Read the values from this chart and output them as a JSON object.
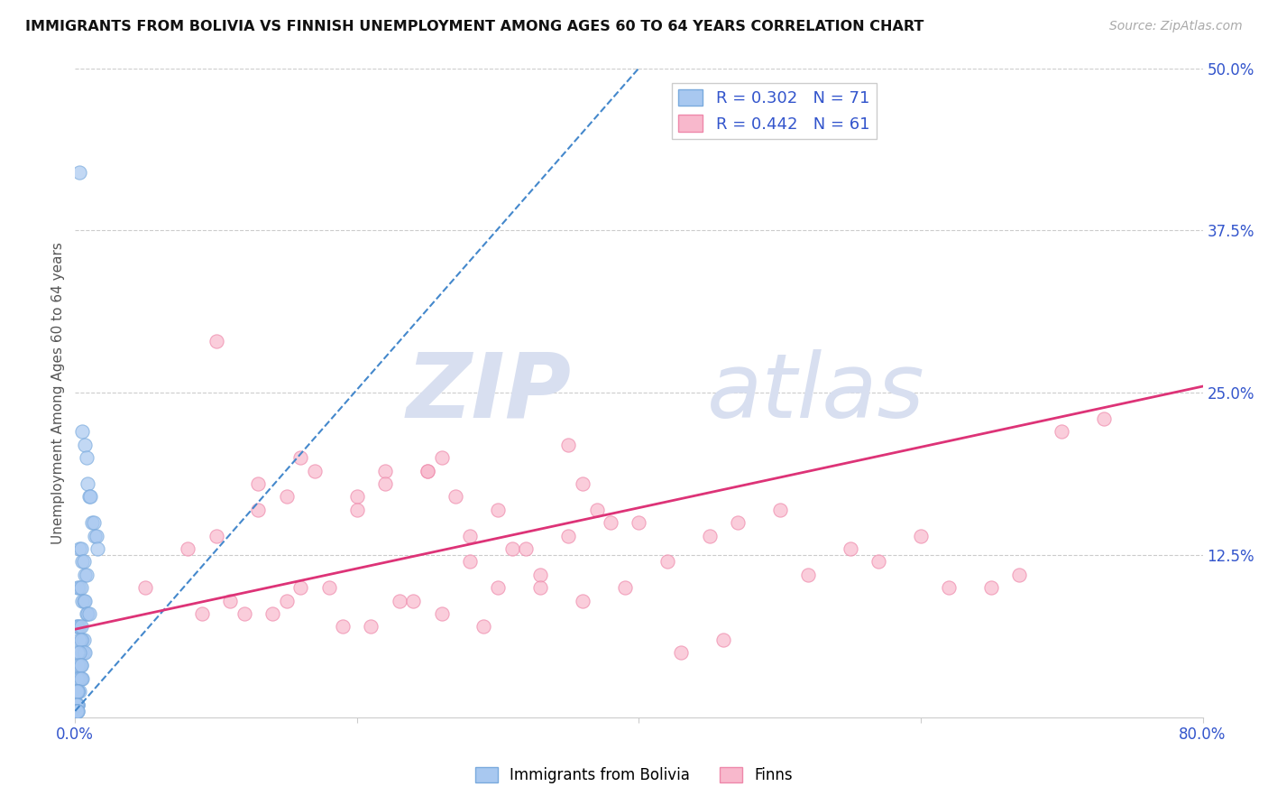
{
  "title": "IMMIGRANTS FROM BOLIVIA VS FINNISH UNEMPLOYMENT AMONG AGES 60 TO 64 YEARS CORRELATION CHART",
  "source": "Source: ZipAtlas.com",
  "ylabel": "Unemployment Among Ages 60 to 64 years",
  "legend_label1": "Immigrants from Bolivia",
  "legend_label2": "Finns",
  "R1": "0.302",
  "N1": "71",
  "R2": "0.442",
  "N2": "61",
  "color_blue": "#a8c8f0",
  "color_blue_edge": "#7aaadd",
  "color_pink": "#f8b8cc",
  "color_pink_edge": "#ee88aa",
  "color_trendline_blue": "#4488cc",
  "color_trendline_pink": "#dd3377",
  "color_axis_labels": "#3355cc",
  "color_title": "#111111",
  "watermark_zip": "ZIP",
  "watermark_atlas": "atlas",
  "watermark_color": "#d8dff0",
  "xlim": [
    0.0,
    0.8
  ],
  "ylim": [
    0.0,
    0.5
  ],
  "xticks": [
    0.0,
    0.2,
    0.4,
    0.6,
    0.8
  ],
  "yticks_right": [
    0.0,
    0.125,
    0.25,
    0.375,
    0.5
  ],
  "ytick_labels_right": [
    "",
    "12.5%",
    "25.0%",
    "37.5%",
    "50.0%"
  ],
  "bolivia_x": [
    0.003,
    0.005,
    0.007,
    0.008,
    0.009,
    0.01,
    0.011,
    0.012,
    0.013,
    0.014,
    0.015,
    0.016,
    0.003,
    0.004,
    0.005,
    0.006,
    0.007,
    0.008,
    0.002,
    0.003,
    0.004,
    0.005,
    0.006,
    0.007,
    0.008,
    0.009,
    0.01,
    0.001,
    0.002,
    0.003,
    0.004,
    0.005,
    0.006,
    0.003,
    0.004,
    0.005,
    0.006,
    0.007,
    0.002,
    0.003,
    0.004,
    0.002,
    0.003,
    0.004,
    0.005,
    0.001,
    0.002,
    0.003,
    0.004,
    0.002,
    0.003,
    0.001,
    0.002,
    0.001,
    0.002,
    0.001,
    0.001,
    0.001,
    0.002,
    0.001,
    0.002,
    0.001,
    0.001,
    0.002,
    0.001,
    0.001,
    0.001,
    0.002,
    0.001,
    0.001,
    0.002
  ],
  "bolivia_y": [
    0.42,
    0.22,
    0.21,
    0.2,
    0.18,
    0.17,
    0.17,
    0.15,
    0.15,
    0.14,
    0.14,
    0.13,
    0.13,
    0.13,
    0.12,
    0.12,
    0.11,
    0.11,
    0.1,
    0.1,
    0.1,
    0.09,
    0.09,
    0.09,
    0.08,
    0.08,
    0.08,
    0.07,
    0.07,
    0.07,
    0.07,
    0.06,
    0.06,
    0.06,
    0.06,
    0.05,
    0.05,
    0.05,
    0.05,
    0.05,
    0.04,
    0.04,
    0.04,
    0.04,
    0.03,
    0.03,
    0.03,
    0.03,
    0.03,
    0.02,
    0.02,
    0.02,
    0.02,
    0.02,
    0.02,
    0.01,
    0.01,
    0.01,
    0.01,
    0.01,
    0.01,
    0.01,
    0.01,
    0.01,
    0.01,
    0.005,
    0.005,
    0.005,
    0.005,
    0.005,
    0.005
  ],
  "finns_x": [
    0.05,
    0.08,
    0.1,
    0.12,
    0.13,
    0.15,
    0.16,
    0.18,
    0.2,
    0.22,
    0.23,
    0.25,
    0.26,
    0.28,
    0.3,
    0.31,
    0.33,
    0.35,
    0.36,
    0.38,
    0.1,
    0.13,
    0.15,
    0.17,
    0.2,
    0.22,
    0.25,
    0.27,
    0.28,
    0.3,
    0.32,
    0.35,
    0.37,
    0.4,
    0.42,
    0.45,
    0.47,
    0.5,
    0.52,
    0.55,
    0.57,
    0.6,
    0.62,
    0.65,
    0.67,
    0.7,
    0.09,
    0.11,
    0.14,
    0.16,
    0.19,
    0.21,
    0.24,
    0.26,
    0.29,
    0.33,
    0.36,
    0.39,
    0.43,
    0.46,
    0.73
  ],
  "finns_y": [
    0.1,
    0.13,
    0.29,
    0.08,
    0.18,
    0.09,
    0.2,
    0.1,
    0.17,
    0.19,
    0.09,
    0.19,
    0.2,
    0.12,
    0.1,
    0.13,
    0.11,
    0.21,
    0.18,
    0.15,
    0.14,
    0.16,
    0.17,
    0.19,
    0.16,
    0.18,
    0.19,
    0.17,
    0.14,
    0.16,
    0.13,
    0.14,
    0.16,
    0.15,
    0.12,
    0.14,
    0.15,
    0.16,
    0.11,
    0.13,
    0.12,
    0.14,
    0.1,
    0.1,
    0.11,
    0.22,
    0.08,
    0.09,
    0.08,
    0.1,
    0.07,
    0.07,
    0.09,
    0.08,
    0.07,
    0.1,
    0.09,
    0.1,
    0.05,
    0.06,
    0.23
  ],
  "bolivia_trend_x": [
    0.0,
    0.4
  ],
  "bolivia_trend_y": [
    0.005,
    0.5
  ],
  "finns_trend_x": [
    0.0,
    0.8
  ],
  "finns_trend_y": [
    0.068,
    0.255
  ],
  "background_color": "#ffffff",
  "grid_color": "#cccccc",
  "source_color": "#aaaaaa"
}
